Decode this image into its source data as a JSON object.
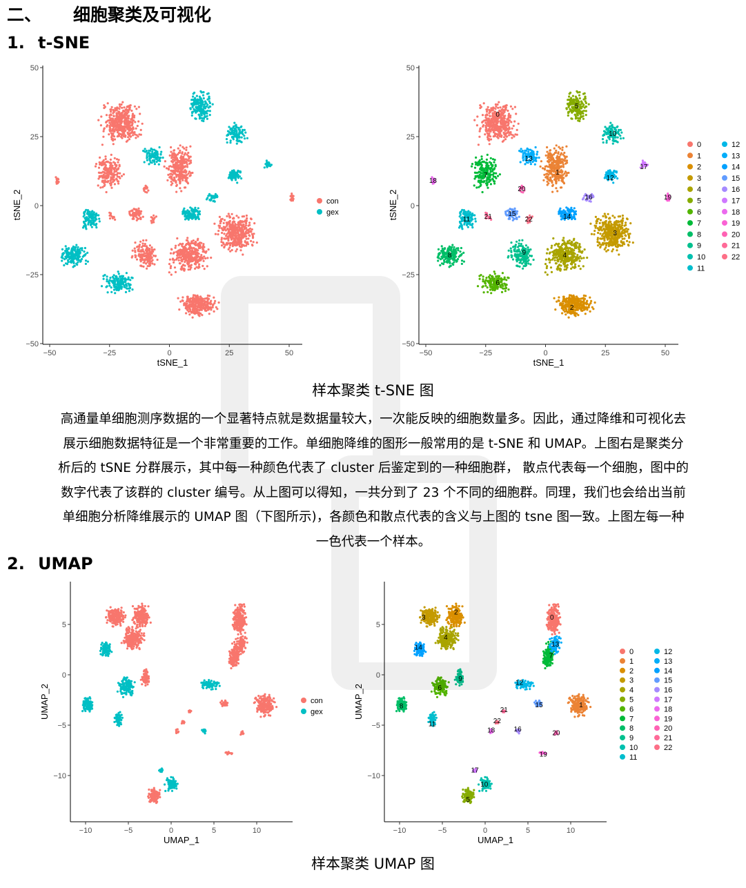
{
  "section": {
    "num": "二、",
    "title": "细胞聚类及可视化"
  },
  "tsne_heading": {
    "num": "1.",
    "title": "t-SNE"
  },
  "umap_heading": {
    "num": "2.",
    "title": "UMAP"
  },
  "tsne_caption": "样本聚类 t-SNE 图",
  "umap_caption": "样本聚类 UMAP 图",
  "paragraph": [
    "高通量单细胞测序数据的一个显著特点就是数据量较大，一次能反映的细胞数量多。因此，通过降维和可视化去",
    "展示细胞数据特征是一个非常重要的工作。单细胞降维的图形一般常用的是 t-SNE 和 UMAP。上图右是聚类分",
    "析后的 tSNE 分群展示，其中每一种颜色代表了 cluster 后鉴定到的一种细胞群，  散点代表每一个细胞，图中的",
    "数字代表了该群的 cluster 编号。从上图可以得知，一共分到了 23 个不同的细胞群。同理，我们也会给出当前",
    "单细胞分析降维展示的 UMAP 图（下图所示)，各颜色和散点代表的含义与上图的 tsne 图一致。上图左每一种",
    "一色代表一个样本。"
  ],
  "sample_legend": [
    {
      "label": "con",
      "color": "#F8766D"
    },
    {
      "label": "gex",
      "color": "#00BFC4"
    }
  ],
  "cluster_legend": [
    {
      "label": "0",
      "color": "#F8766D"
    },
    {
      "label": "1",
      "color": "#EB8335"
    },
    {
      "label": "2",
      "color": "#DA8F00"
    },
    {
      "label": "3",
      "color": "#C49A00"
    },
    {
      "label": "4",
      "color": "#A9A400"
    },
    {
      "label": "5",
      "color": "#86AC00"
    },
    {
      "label": "6",
      "color": "#53B400"
    },
    {
      "label": "7",
      "color": "#00BA38"
    },
    {
      "label": "8",
      "color": "#00BE67"
    },
    {
      "label": "9",
      "color": "#00C08E"
    },
    {
      "label": "10",
      "color": "#00C0AF"
    },
    {
      "label": "11",
      "color": "#00BDCD"
    },
    {
      "label": "12",
      "color": "#00B7E7"
    },
    {
      "label": "13",
      "color": "#00ADFA"
    },
    {
      "label": "14",
      "color": "#00A1FF"
    },
    {
      "label": "15",
      "color": "#619CFF"
    },
    {
      "label": "16",
      "color": "#A58AFF"
    },
    {
      "label": "17",
      "color": "#CF78FF"
    },
    {
      "label": "18",
      "color": "#EB6AEE"
    },
    {
      "label": "19",
      "color": "#FA62D4"
    },
    {
      "label": "20",
      "color": "#FF62B4"
    },
    {
      "label": "21",
      "color": "#FF6A98"
    },
    {
      "label": "22",
      "color": "#FD6F87"
    }
  ],
  "tsne_axes": {
    "xlabel": "tSNE_1",
    "ylabel": "tSNE_2",
    "xticks": [
      "−50",
      "−25",
      "0",
      "25",
      "50"
    ],
    "yticks": [
      "50",
      "25",
      "0",
      "−25",
      "−50"
    ]
  },
  "umap_axes": {
    "xlabel": "UMAP_1",
    "ylabel": "UMAP_2",
    "xticks": [
      "−10",
      "−5",
      "0",
      "5",
      "10"
    ],
    "yticks": [
      "5",
      "0",
      "−5",
      "−10"
    ]
  },
  "tsne_cluster_labels": [
    {
      "label": "0",
      "x": -20,
      "y": 33
    },
    {
      "label": "1",
      "x": 5,
      "y": 12
    },
    {
      "label": "2",
      "x": 11,
      "y": -37
    },
    {
      "label": "3",
      "x": 29,
      "y": -10
    },
    {
      "label": "4",
      "x": 8,
      "y": -18
    },
    {
      "label": "5",
      "x": 13,
      "y": 36
    },
    {
      "label": "6",
      "x": -20,
      "y": -28
    },
    {
      "label": "7",
      "x": -25,
      "y": 11
    },
    {
      "label": "8",
      "x": -40,
      "y": -18
    },
    {
      "label": "9",
      "x": -9,
      "y": -17
    },
    {
      "label": "10",
      "x": 28,
      "y": 26
    },
    {
      "label": "11",
      "x": -33,
      "y": -5
    },
    {
      "label": "12",
      "x": 27,
      "y": 10
    },
    {
      "label": "13",
      "x": -7,
      "y": 17
    },
    {
      "label": "14",
      "x": 9,
      "y": -4
    },
    {
      "label": "15",
      "x": -14,
      "y": -3
    },
    {
      "label": "16",
      "x": 18,
      "y": 3
    },
    {
      "label": "17",
      "x": 41,
      "y": 14
    },
    {
      "label": "18",
      "x": -47,
      "y": 9
    },
    {
      "label": "19",
      "x": 51,
      "y": 3
    },
    {
      "label": "20",
      "x": -10,
      "y": 6
    },
    {
      "label": "21",
      "x": -24,
      "y": -4
    },
    {
      "label": "22",
      "x": -7,
      "y": -5
    }
  ],
  "umap_cluster_labels": [
    {
      "label": "0",
      "x": 7.8,
      "y": 5.7
    },
    {
      "label": "1",
      "x": 11.2,
      "y": -3
    },
    {
      "label": "2",
      "x": -3.4,
      "y": 6.2
    },
    {
      "label": "3",
      "x": -7.2,
      "y": 5.7
    },
    {
      "label": "4",
      "x": -4.6,
      "y": 3.7
    },
    {
      "label": "5",
      "x": -2,
      "y": -12.4
    },
    {
      "label": "6",
      "x": -5.3,
      "y": -1.3
    },
    {
      "label": "7",
      "x": 7.7,
      "y": 1.9
    },
    {
      "label": "8",
      "x": -9.8,
      "y": -3.1
    },
    {
      "label": "9",
      "x": -2.9,
      "y": -0.4
    },
    {
      "label": "10",
      "x": -0.1,
      "y": -10.9
    },
    {
      "label": "11",
      "x": -6.2,
      "y": -4.9
    },
    {
      "label": "12",
      "x": 4,
      "y": -0.8
    },
    {
      "label": "13",
      "x": 8.2,
      "y": 3
    },
    {
      "label": "14",
      "x": -7.8,
      "y": 2.7
    },
    {
      "label": "15",
      "x": 6.3,
      "y": -3
    },
    {
      "label": "16",
      "x": 3.8,
      "y": -5.4
    },
    {
      "label": "17",
      "x": -1.2,
      "y": -9.5
    },
    {
      "label": "18",
      "x": 0.7,
      "y": -5.5
    },
    {
      "label": "19",
      "x": 6.8,
      "y": -7.9
    },
    {
      "label": "20",
      "x": 8.3,
      "y": -5.8
    },
    {
      "label": "21",
      "x": 2.2,
      "y": -3.5
    },
    {
      "label": "22",
      "x": 1.4,
      "y": -4.6
    }
  ]
}
